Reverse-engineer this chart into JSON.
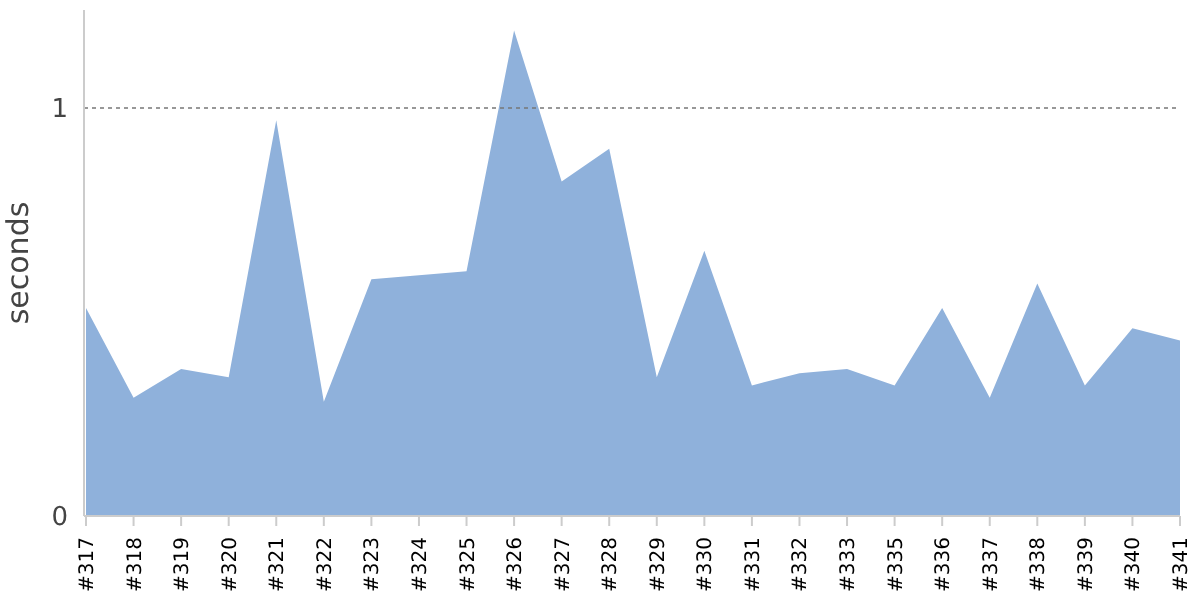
{
  "chart_data": {
    "type": "area",
    "ylabel": "seconds",
    "categories": [
      "#317",
      "#318",
      "#319",
      "#320",
      "#321",
      "#322",
      "#323",
      "#324",
      "#325",
      "#326",
      "#327",
      "#328",
      "#329",
      "#330",
      "#331",
      "#332",
      "#333",
      "#335",
      "#336",
      "#337",
      "#338",
      "#339",
      "#340",
      "#341"
    ],
    "series": [
      {
        "color": "#8fb1db",
        "values": [
          0.51,
          0.29,
          0.36,
          0.34,
          0.97,
          0.28,
          0.58,
          0.59,
          0.6,
          1.19,
          0.82,
          0.9,
          0.34,
          0.65,
          0.32,
          0.35,
          0.36,
          0.32,
          0.51,
          0.29,
          0.57,
          0.32,
          0.46,
          0.43
        ]
      }
    ],
    "ylim": [
      0,
      1.24
    ],
    "yticks": [
      0,
      1
    ],
    "grid": "y"
  }
}
